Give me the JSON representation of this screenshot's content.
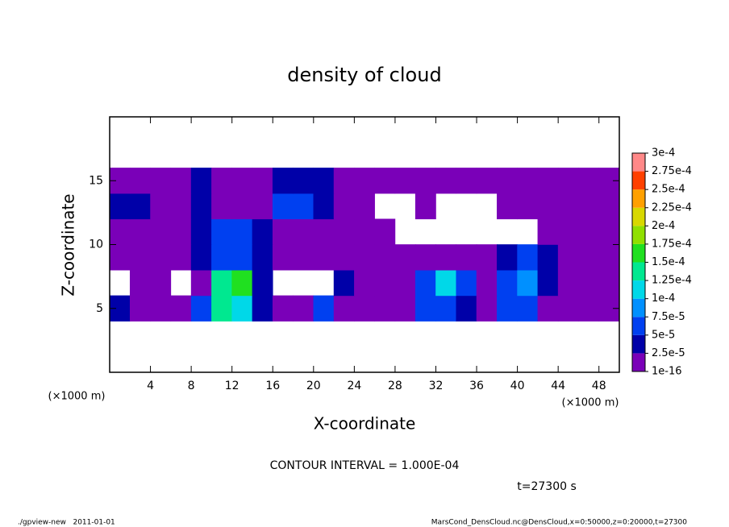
{
  "chart_data": {
    "type": "heatmap",
    "title": "density of cloud",
    "xlabel": "X-coordinate",
    "ylabel": "Z-coordinate",
    "xunit": "(×1000 m)",
    "yunit": "(×1000 m)",
    "contour_note": "CONTOUR INTERVAL = 1.000E-04",
    "time_note": "t=27300 s",
    "footer_left": "./gpview-new   2011-01-01",
    "footer_right": "MarsCond_DensCloud.nc@DensCloud,x=0:50000,z=0:20000,t=27300",
    "xlim": [
      0,
      50
    ],
    "ylim": [
      0,
      20
    ],
    "xticks": [
      4,
      8,
      12,
      16,
      20,
      24,
      28,
      32,
      36,
      40,
      44,
      48
    ],
    "yticks": [
      5,
      10,
      15
    ],
    "x": [
      1,
      3,
      5,
      7,
      9,
      11,
      13,
      15,
      17,
      19,
      21,
      23,
      25,
      27,
      29,
      31,
      33,
      35,
      37,
      39,
      41,
      43,
      45,
      47,
      49
    ],
    "z": [
      5,
      7,
      9,
      11,
      13,
      15
    ],
    "values": [
      [
        3e-05,
        1e-05,
        1e-05,
        1e-05,
        6e-05,
        0.00013,
        0.00011,
        3e-05,
        1e-05,
        1e-05,
        6e-05,
        1e-05,
        1e-05,
        1e-05,
        1e-05,
        6e-05,
        6e-05,
        3e-05,
        1e-05,
        6e-05,
        6e-05,
        1e-05,
        1e-05,
        1e-05,
        1e-05
      ],
      [
        null,
        1e-05,
        1e-05,
        null,
        1e-05,
        0.00013,
        0.00016,
        3e-05,
        null,
        null,
        null,
        3e-05,
        1e-05,
        1e-05,
        1e-05,
        6e-05,
        0.00012,
        6e-05,
        1e-05,
        6e-05,
        9e-05,
        3e-05,
        1e-05,
        1e-05,
        1e-05
      ],
      [
        1e-05,
        1e-05,
        1e-05,
        1e-05,
        3e-05,
        6e-05,
        6e-05,
        3e-05,
        1e-05,
        1e-05,
        1e-05,
        1e-05,
        1e-05,
        1e-05,
        1e-05,
        1e-05,
        1e-05,
        1e-05,
        1e-05,
        3e-05,
        6e-05,
        3e-05,
        1e-05,
        1e-05,
        1e-05
      ],
      [
        1e-05,
        1e-05,
        1e-05,
        1e-05,
        3e-05,
        6e-05,
        6e-05,
        3e-05,
        1e-05,
        1e-05,
        1e-05,
        1e-05,
        1e-05,
        1e-05,
        null,
        null,
        null,
        null,
        null,
        null,
        null,
        1e-05,
        1e-05,
        1e-05,
        1e-05
      ],
      [
        3e-05,
        3e-05,
        1e-05,
        1e-05,
        3e-05,
        1e-05,
        1e-05,
        1e-05,
        5e-05,
        5e-05,
        3e-05,
        1e-05,
        1e-05,
        null,
        null,
        1e-05,
        null,
        null,
        null,
        1e-05,
        1e-05,
        1e-05,
        1e-05,
        1e-05,
        1e-05
      ],
      [
        1e-05,
        1e-05,
        1e-05,
        1e-05,
        3e-05,
        1e-05,
        1e-05,
        1e-05,
        3e-05,
        3e-05,
        3e-05,
        1e-05,
        1e-05,
        1e-05,
        1e-05,
        1e-05,
        1e-05,
        1e-05,
        1e-05,
        1e-05,
        1e-05,
        1e-05,
        1e-05,
        1e-05,
        1e-05
      ]
    ],
    "clim": [
      1e-16,
      0.0003
    ],
    "colorbar_ticks": [
      {
        "value": 1e-16,
        "label": "1e-16"
      },
      {
        "value": 2.5e-05,
        "label": "2.5e-5"
      },
      {
        "value": 5e-05,
        "label": "5e-5"
      },
      {
        "value": 7.5e-05,
        "label": "7.5e-5"
      },
      {
        "value": 0.0001,
        "label": "1e-4"
      },
      {
        "value": 0.000125,
        "label": "1.25e-4"
      },
      {
        "value": 0.00015,
        "label": "1.5e-4"
      },
      {
        "value": 0.000175,
        "label": "1.75e-4"
      },
      {
        "value": 0.0002,
        "label": "2e-4"
      },
      {
        "value": 0.000225,
        "label": "2.25e-4"
      },
      {
        "value": 0.00025,
        "label": "2.5e-4"
      },
      {
        "value": 0.000275,
        "label": "2.75e-4"
      },
      {
        "value": 0.0003,
        "label": "3e-4"
      }
    ],
    "colors": [
      "#7a00b8",
      "#0000a8",
      "#0040f0",
      "#0090ff",
      "#00d8e8",
      "#00e890",
      "#20e020",
      "#90e000",
      "#d8d800",
      "#ffa000",
      "#ff4000",
      "#ff8888"
    ]
  }
}
